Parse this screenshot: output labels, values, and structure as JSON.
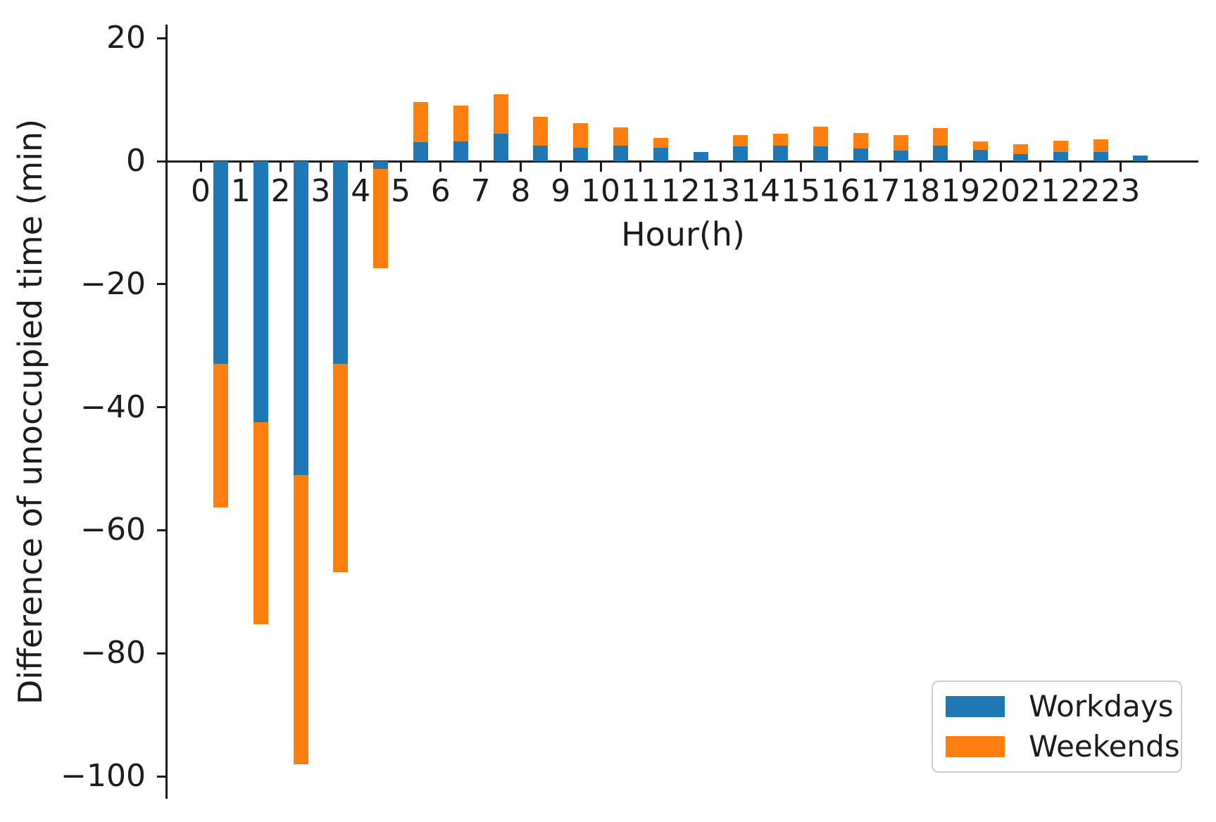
{
  "figure": {
    "background": "#ffffff",
    "text_color": "#1c1c1c",
    "axis_color": "#1c1c1c"
  },
  "chart_data": {
    "type": "bar",
    "stacked": true,
    "title": "",
    "xlabel": "Hour(h)",
    "ylabel": "Difference of unoccupied time (min)",
    "grid": false,
    "legend": {
      "position": "lower-right",
      "labels": [
        "Workdays",
        "Weekends"
      ]
    },
    "categories": [
      "0",
      "1",
      "2",
      "3",
      "4",
      "5",
      "6",
      "7",
      "8",
      "9",
      "10",
      "11",
      "12",
      "13",
      "14",
      "15",
      "16",
      "17",
      "18",
      "19",
      "20",
      "21",
      "22",
      "23"
    ],
    "bar_center_offset": 0.5,
    "series": [
      {
        "name": "Workdays",
        "color": "#1f77b4",
        "values": [
          -33,
          -42.5,
          -51,
          -33,
          -1.3,
          3.1,
          3.2,
          4.5,
          2.5,
          2.2,
          2.5,
          2.2,
          1.5,
          2.4,
          2.5,
          2.4,
          2.1,
          1.7,
          2.5,
          1.8,
          1.1,
          1.5,
          1.5,
          0.9
        ]
      },
      {
        "name": "Weekends",
        "color": "#ff7f0e",
        "values": [
          -23.3,
          -32.8,
          -47.1,
          -33.8,
          -16.1,
          6.5,
          5.8,
          6.4,
          4.7,
          4.0,
          3.0,
          1.6,
          0,
          1.8,
          2.0,
          3.2,
          2.5,
          2.5,
          2.9,
          1.4,
          1.6,
          1.8,
          2.1,
          0
        ]
      }
    ],
    "stack_totals": [
      -56.3,
      -75.3,
      -98.1,
      -66.8,
      -17.4,
      9.6,
      9.0,
      10.9,
      7.2,
      6.2,
      5.5,
      3.8,
      1.5,
      4.2,
      4.5,
      5.6,
      4.6,
      4.2,
      5.4,
      3.2,
      2.7,
      3.3,
      3.6,
      0.9
    ],
    "yticks": [
      {
        "value": 20,
        "label": "20"
      },
      {
        "value": 0,
        "label": "0"
      },
      {
        "value": -20,
        "label": "−20"
      },
      {
        "value": -40,
        "label": "−40"
      },
      {
        "value": -60,
        "label": "−60"
      },
      {
        "value": -80,
        "label": "−80"
      },
      {
        "value": -100,
        "label": "−100"
      }
    ],
    "ylim": [
      -103.5,
      22.2
    ],
    "xlim": [
      -0.83,
      24.95
    ]
  }
}
